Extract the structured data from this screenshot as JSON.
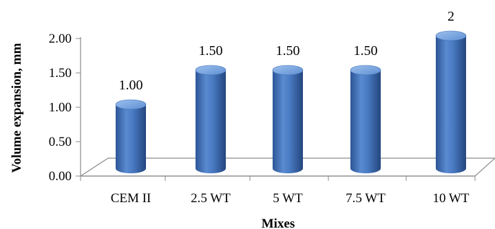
{
  "chart_data": {
    "type": "bar",
    "title": "",
    "xlabel": "Mixes",
    "ylabel": "Volume expansion, mm",
    "categories": [
      "CEM II",
      "2.5 WT",
      "5 WT",
      "7.5 WT",
      "10 WT"
    ],
    "series": [
      {
        "values": [
          1.0,
          1.5,
          1.5,
          1.5,
          2.0
        ]
      }
    ],
    "data_labels": [
      "1.00",
      "1.50",
      "1.50",
      "1.50",
      "2"
    ],
    "y_ticks": [
      "0.00",
      "0.50",
      "1.00",
      "1.50",
      "2.00"
    ],
    "ylim": [
      0,
      2
    ],
    "grid": false,
    "legend": "none",
    "bar_style": "3d-cylinder",
    "colors": {
      "bar": "#4a7cc4",
      "bar_dark": "#2e5a9c",
      "bar_light": "#8fb4e6",
      "axis": "#8a8a8a"
    }
  }
}
